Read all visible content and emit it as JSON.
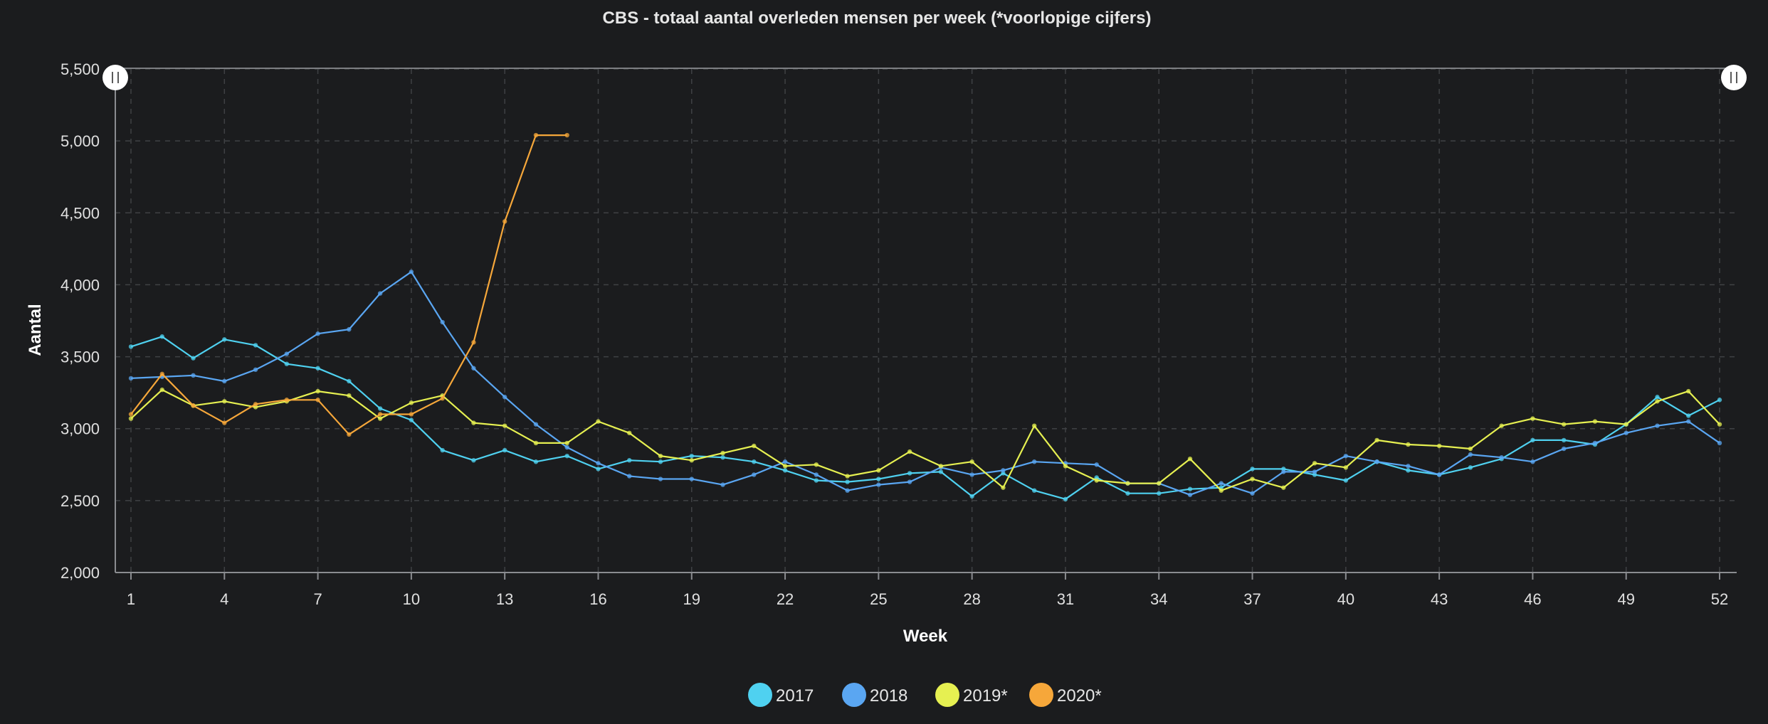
{
  "chart_data": {
    "type": "line",
    "title": "CBS - totaal aantal overleden mensen per week (*voorlopige cijfers)",
    "xlabel": "Week",
    "ylabel": "Aantal",
    "xlim": [
      1,
      52
    ],
    "ylim": [
      2000,
      5500
    ],
    "x_ticks": [
      1,
      4,
      7,
      10,
      13,
      16,
      19,
      22,
      25,
      28,
      31,
      34,
      37,
      40,
      43,
      46,
      49,
      52
    ],
    "y_ticks": [
      2000,
      2500,
      3000,
      3500,
      4000,
      4500,
      5000,
      5500
    ],
    "y_tick_labels": [
      "2,000",
      "2,500",
      "3,000",
      "3,500",
      "4,000",
      "4,500",
      "5,000",
      "5,500"
    ],
    "grid": true,
    "legend_position": "bottom",
    "series": [
      {
        "name": "2017",
        "color": "#4fd1f0",
        "x": [
          1,
          2,
          3,
          4,
          5,
          6,
          7,
          8,
          9,
          10,
          11,
          12,
          13,
          14,
          15,
          16,
          17,
          18,
          19,
          20,
          21,
          22,
          23,
          24,
          25,
          26,
          27,
          28,
          29,
          30,
          31,
          32,
          33,
          34,
          35,
          36,
          37,
          38,
          39,
          40,
          41,
          42,
          43,
          44,
          45,
          46,
          47,
          48,
          49,
          50,
          51,
          52
        ],
        "values": [
          3570,
          3640,
          3490,
          3620,
          3580,
          3450,
          3420,
          3330,
          3140,
          3060,
          2850,
          2780,
          2850,
          2770,
          2810,
          2720,
          2780,
          2770,
          2810,
          2800,
          2770,
          2710,
          2640,
          2630,
          2650,
          2690,
          2700,
          2530,
          2690,
          2570,
          2510,
          2660,
          2550,
          2550,
          2580,
          2590,
          2720,
          2720,
          2680,
          2640,
          2770,
          2710,
          2680,
          2730,
          2790,
          2920,
          2920,
          2890,
          3030,
          3220,
          3090,
          3200
        ]
      },
      {
        "name": "2018",
        "color": "#5aa6f2",
        "x": [
          1,
          2,
          3,
          4,
          5,
          6,
          7,
          8,
          9,
          10,
          11,
          12,
          13,
          14,
          15,
          16,
          17,
          18,
          19,
          20,
          21,
          22,
          23,
          24,
          25,
          26,
          27,
          28,
          29,
          30,
          31,
          32,
          33,
          34,
          35,
          36,
          37,
          38,
          39,
          40,
          41,
          42,
          43,
          44,
          45,
          46,
          47,
          48,
          49,
          50,
          51,
          52
        ],
        "values": [
          3350,
          3360,
          3370,
          3330,
          3410,
          3520,
          3660,
          3690,
          3940,
          4090,
          3740,
          3420,
          3220,
          3030,
          2870,
          2760,
          2670,
          2650,
          2650,
          2610,
          2680,
          2770,
          2680,
          2570,
          2610,
          2630,
          2730,
          2680,
          2710,
          2770,
          2760,
          2750,
          2620,
          2620,
          2540,
          2620,
          2550,
          2700,
          2700,
          2810,
          2770,
          2740,
          2680,
          2820,
          2800,
          2770,
          2860,
          2900,
          2970,
          3020,
          3050,
          2900
        ]
      },
      {
        "name": "2019*",
        "color": "#e6f051",
        "x": [
          1,
          2,
          3,
          4,
          5,
          6,
          7,
          8,
          9,
          10,
          11,
          12,
          13,
          14,
          15,
          16,
          17,
          18,
          19,
          20,
          21,
          22,
          23,
          24,
          25,
          26,
          27,
          28,
          29,
          30,
          31,
          32,
          33,
          34,
          35,
          36,
          37,
          38,
          39,
          40,
          41,
          42,
          43,
          44,
          45,
          46,
          47,
          48,
          49,
          50,
          51,
          52
        ],
        "values": [
          3070,
          3270,
          3160,
          3190,
          3150,
          3190,
          3260,
          3230,
          3070,
          3180,
          3230,
          3040,
          3020,
          2900,
          2900,
          3050,
          2970,
          2810,
          2780,
          2830,
          2880,
          2740,
          2750,
          2670,
          2710,
          2840,
          2740,
          2770,
          2590,
          3020,
          2740,
          2640,
          2620,
          2620,
          2790,
          2570,
          2650,
          2590,
          2760,
          2730,
          2920,
          2890,
          2880,
          2860,
          3020,
          3070,
          3030,
          3050,
          3030,
          3190,
          3260,
          3030
        ]
      },
      {
        "name": "2020*",
        "color": "#f6a73a",
        "x": [
          1,
          2,
          3,
          4,
          5,
          6,
          7,
          8,
          9,
          10,
          11,
          12,
          13,
          14,
          15
        ],
        "values": [
          3100,
          3380,
          3160,
          3040,
          3170,
          3200,
          3200,
          2960,
          3100,
          3100,
          3210,
          3600,
          4440,
          5040,
          5040
        ]
      }
    ]
  }
}
